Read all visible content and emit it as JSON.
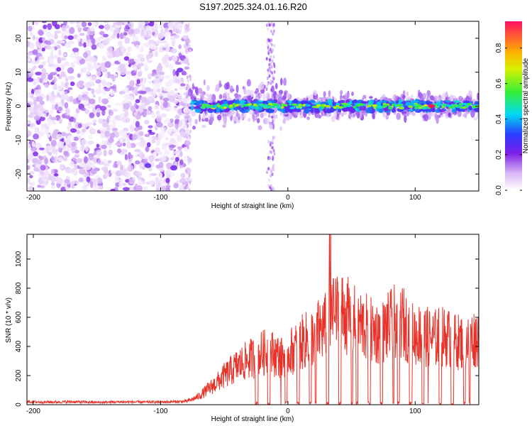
{
  "title": "S197.2025.324.01.16.R20",
  "chart_data": [
    {
      "type": "heatmap",
      "xlabel": "Height of straight line (km)",
      "ylabel": "Frequency (Hz)",
      "xlim": [
        -205,
        150
      ],
      "ylim": [
        -25,
        25
      ],
      "xticks": [
        -200,
        -100,
        0,
        100
      ],
      "yticks": [
        -20,
        -10,
        0,
        10,
        20
      ],
      "colorbar": {
        "label": "Normalized spectral amplitude",
        "range": [
          0,
          0.95
        ],
        "ticks": [
          0.0,
          0.2,
          0.4,
          0.6,
          0.8
        ],
        "tick_labels": [
          "0.0",
          "0.2",
          "0.4",
          "0.6",
          "0.8"
        ]
      },
      "regions": [
        {
          "name": "broadband noise",
          "x_range": [
            -205,
            -77
          ],
          "f_range": [
            -25,
            25
          ],
          "amplitude": [
            0.02,
            0.25
          ]
        },
        {
          "name": "signal line",
          "x_range": [
            -77,
            150
          ],
          "f_center": 0,
          "amplitude": [
            0.1,
            0.95
          ]
        }
      ],
      "peak": {
        "x": 113,
        "f": 0,
        "amplitude": 0.95
      }
    },
    {
      "type": "line",
      "xlabel": "Height of straight line (km)",
      "ylabel": "SNR (10 * v/v)",
      "xlim": [
        -205,
        150
      ],
      "ylim": [
        0,
        1170
      ],
      "xticks": [
        -200,
        -100,
        0,
        100
      ],
      "yticks": [
        0,
        200,
        400,
        600,
        800,
        1000
      ],
      "color": "#e8332a",
      "series": [
        {
          "name": "SNR",
          "x": [
            -205,
            -190,
            -170,
            -150,
            -130,
            -110,
            -90,
            -80,
            -75,
            -70,
            -65,
            -60,
            -55,
            -50,
            -45,
            -40,
            -35,
            -30,
            -25,
            -20,
            -15,
            -10,
            -5,
            0,
            5,
            10,
            15,
            20,
            25,
            30,
            35,
            40,
            45,
            50,
            55,
            60,
            65,
            70,
            75,
            80,
            85,
            90,
            95,
            100,
            105,
            110,
            115,
            120,
            125,
            130,
            135,
            140,
            145,
            150
          ],
          "y": [
            25,
            22,
            25,
            20,
            24,
            22,
            25,
            28,
            45,
            70,
            110,
            150,
            190,
            240,
            280,
            320,
            350,
            380,
            400,
            430,
            440,
            420,
            390,
            430,
            460,
            510,
            540,
            570,
            620,
            650,
            720,
            780,
            760,
            700,
            680,
            650,
            620,
            600,
            610,
            660,
            700,
            690,
            620,
            580,
            590,
            560,
            550,
            570,
            560,
            540,
            520,
            540,
            550,
            560
          ]
        }
      ]
    }
  ]
}
